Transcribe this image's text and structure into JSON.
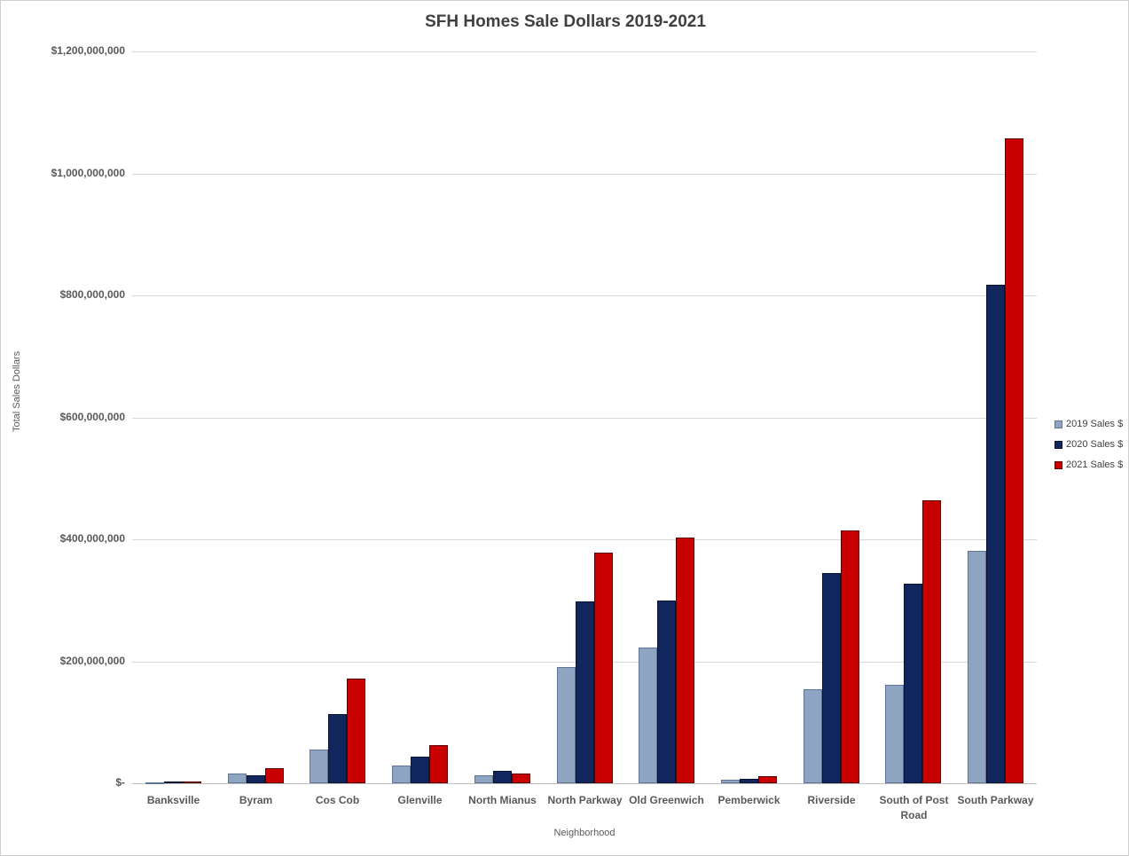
{
  "chart_data": {
    "type": "bar",
    "title": "SFH Homes Sale Dollars 2019-2021",
    "xlabel": "Neighborhood",
    "ylabel": "Total Sales Dollars",
    "categories": [
      "Banksville",
      "Byram",
      "Cos Cob",
      "Glenville",
      "North Mianus",
      "North Parkway",
      "Old Greenwich",
      "Pemberwick",
      "Riverside",
      "South of Post Road",
      "South Parkway"
    ],
    "series": [
      {
        "name": "2019 Sales $",
        "color": "#8EA4C1",
        "border_color": "#5F7499",
        "values": [
          1500000,
          16000000,
          55000000,
          29000000,
          13000000,
          191000000,
          223000000,
          6000000,
          154000000,
          161000000,
          381000000
        ]
      },
      {
        "name": "2020 Sales $",
        "color": "#12265E",
        "border_color": "#0A1430",
        "values": [
          3500000,
          12500000,
          114000000,
          43000000,
          21000000,
          298000000,
          299000000,
          7000000,
          344000000,
          327000000,
          818000000
        ]
      },
      {
        "name": "2021 Sales $",
        "color": "#C80000",
        "border_color": "#5A0000",
        "values": [
          3500000,
          24000000,
          171000000,
          63000000,
          16000000,
          378000000,
          403000000,
          12000000,
          414000000,
          464000000,
          1058000000
        ]
      }
    ],
    "ylim": [
      0,
      1200000000
    ],
    "ytick_step": 200000000,
    "ytick_labels": [
      "$-",
      "$200,000,000",
      "$400,000,000",
      "$600,000,000",
      "$800,000,000",
      "$1,000,000,000",
      "$1,200,000,000"
    ],
    "legend_position": "right",
    "grid": "horizontal",
    "gridline_color": "#d9d9d9",
    "axis_line_color": "#bfbfbf",
    "text_color_axis": "#595959",
    "text_color_title": "#404040"
  }
}
